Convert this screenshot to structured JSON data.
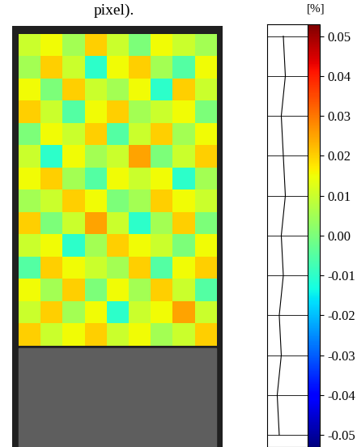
{
  "chart_data": {
    "type": "heatmap",
    "title": "pixel).",
    "colorbar_label": "[%]",
    "tick_labels": false,
    "cells": [
      [
        0.01,
        0.015,
        0.005,
        0.02,
        0.01,
        0.0,
        0.015,
        0.01,
        0.005
      ],
      [
        0.005,
        0.02,
        0.01,
        -0.01,
        0.015,
        0.02,
        0.005,
        -0.005,
        0.015
      ],
      [
        0.015,
        0.0,
        0.02,
        0.01,
        0.005,
        0.015,
        -0.01,
        0.02,
        0.01
      ],
      [
        0.02,
        0.01,
        -0.005,
        0.015,
        0.02,
        0.005,
        0.01,
        0.015,
        0.0
      ],
      [
        0.0,
        0.015,
        0.01,
        0.02,
        -0.005,
        0.01,
        0.02,
        0.005,
        0.015
      ],
      [
        0.01,
        -0.01,
        0.015,
        0.005,
        0.01,
        0.025,
        0.0,
        0.01,
        0.02
      ],
      [
        0.015,
        0.02,
        0.005,
        -0.005,
        0.015,
        0.01,
        0.015,
        -0.01,
        0.005
      ],
      [
        0.005,
        0.01,
        0.02,
        0.015,
        0.0,
        0.005,
        0.02,
        0.015,
        0.01
      ],
      [
        0.02,
        0.0,
        0.01,
        0.025,
        0.01,
        -0.01,
        0.005,
        0.02,
        0.0
      ],
      [
        0.01,
        0.015,
        -0.01,
        0.005,
        0.02,
        0.015,
        0.01,
        0.0,
        0.015
      ],
      [
        -0.005,
        0.02,
        0.015,
        0.01,
        0.005,
        0.02,
        -0.005,
        0.015,
        0.02
      ],
      [
        0.015,
        0.005,
        0.02,
        0.0,
        0.015,
        0.005,
        0.02,
        0.01,
        -0.005
      ],
      [
        0.01,
        0.02,
        0.005,
        0.015,
        -0.01,
        0.01,
        0.015,
        0.025,
        0.01
      ],
      [
        0.02,
        0.01,
        0.015,
        0.02,
        0.01,
        0.015,
        0.005,
        0.01,
        0.02
      ]
    ],
    "color_range": [
      -0.053,
      0.053
    ],
    "color_ticks": [
      0.05,
      0.04,
      0.03,
      0.02,
      0.01,
      {
        "value": 0,
        "label": "0.00"
      },
      -0.01,
      -0.02,
      -0.03,
      -0.04,
      -0.05
    ],
    "profile": {
      "levels": [
        -0.05,
        -0.04,
        -0.03,
        -0.02,
        -0.01,
        0,
        0.01,
        0.02,
        0.03,
        0.04,
        0.05
      ],
      "values": [
        0.3,
        0.25,
        0.35,
        0.3,
        0.4,
        0.35,
        0.45,
        0.4,
        0.35,
        0.45,
        0.4
      ],
      "xlim": [
        0,
        1
      ]
    }
  }
}
